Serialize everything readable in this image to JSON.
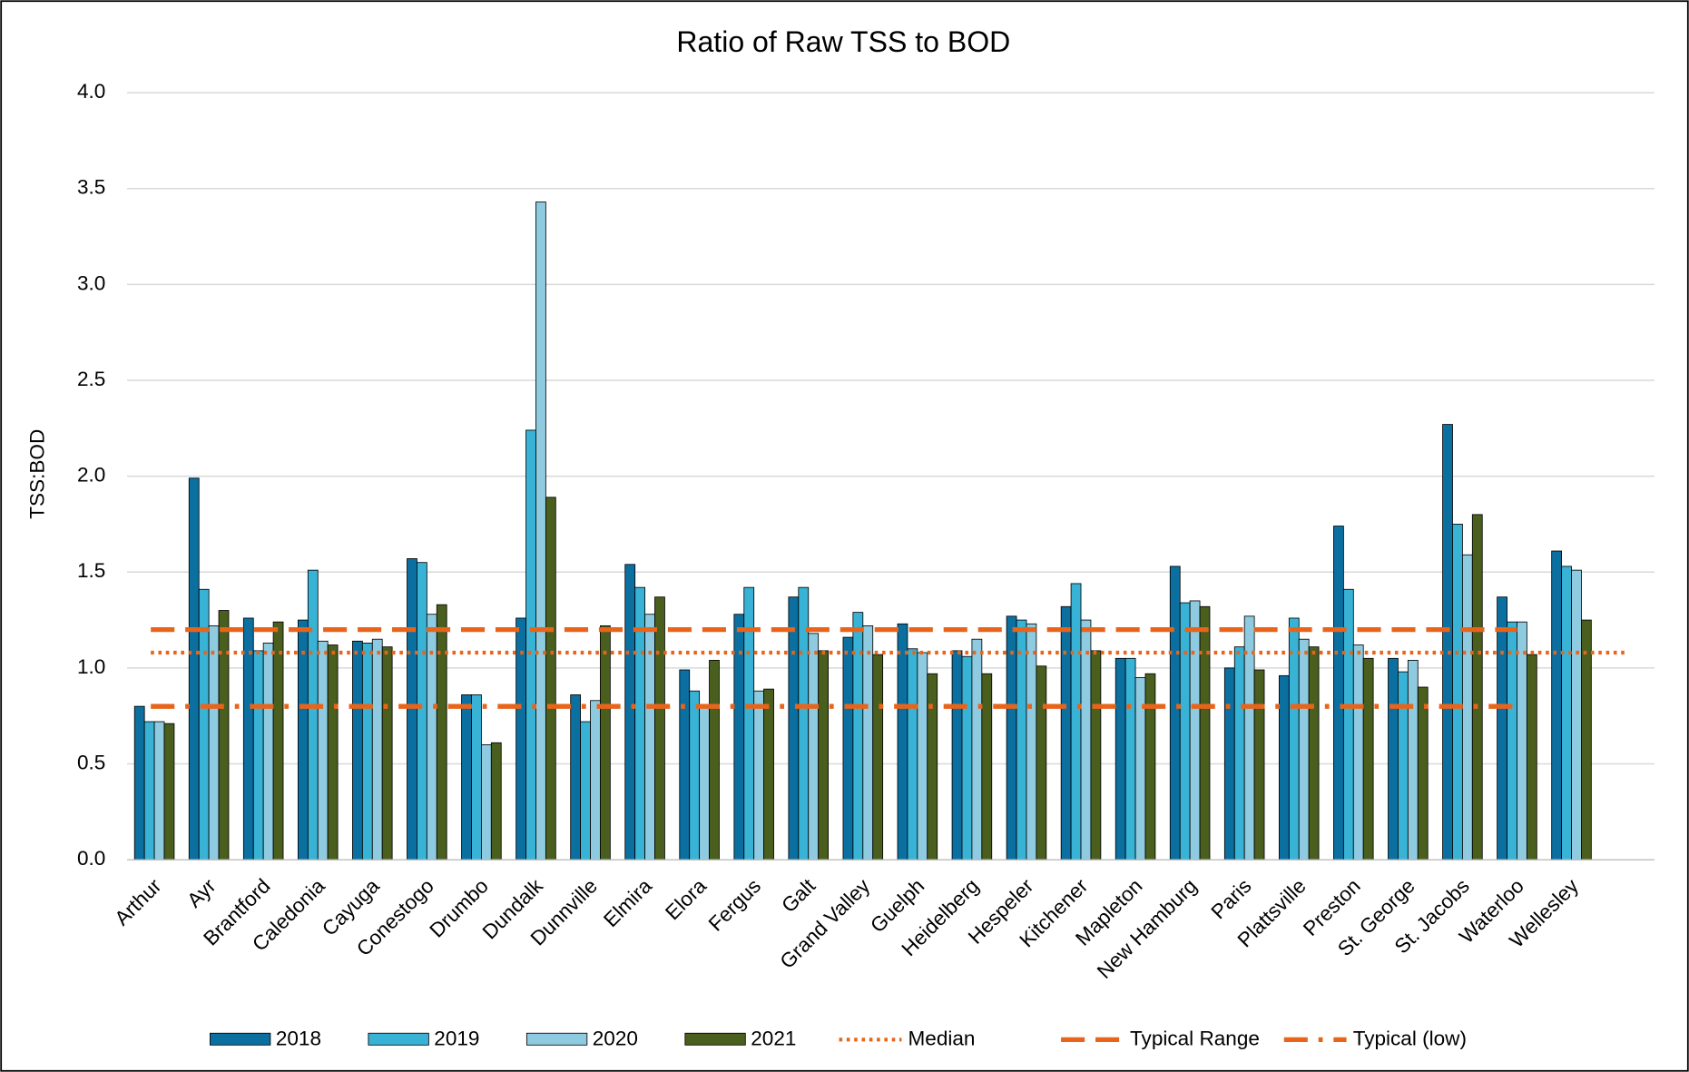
{
  "chart_data": {
    "type": "bar",
    "title": "Ratio of Raw TSS to BOD",
    "y_label": "TSS:BOD",
    "categories": [
      "Arthur",
      "Ayr",
      "Brantford",
      "Caledonia",
      "Cayuga",
      "Conestogo",
      "Drumbo",
      "Dundalk",
      "Dunnville",
      "Elmira",
      "Elora",
      "Fergus",
      "Galt",
      "Grand Valley",
      "Guelph",
      "Heidelberg",
      "Hespeler",
      "Kitchener",
      "Mapleton",
      "New Hamburg",
      "Paris",
      "Plattsville",
      "Preston",
      "St. George",
      "St. Jacobs",
      "Waterloo",
      "Wellesley"
    ],
    "series": [
      {
        "name": "2018",
        "color": "#0b6fa0",
        "values": [
          0.8,
          1.99,
          1.26,
          1.25,
          1.14,
          1.57,
          0.86,
          1.26,
          0.86,
          1.54,
          0.99,
          1.28,
          1.37,
          1.16,
          1.23,
          1.09,
          1.27,
          1.32,
          1.05,
          1.53,
          1.0,
          0.96,
          1.74,
          1.05,
          2.27,
          1.37,
          1.61
        ]
      },
      {
        "name": "2019",
        "color": "#38b3d6",
        "values": [
          0.72,
          1.41,
          1.09,
          1.51,
          1.13,
          1.55,
          0.86,
          2.24,
          0.72,
          1.42,
          0.88,
          1.42,
          1.42,
          1.29,
          1.1,
          1.06,
          1.25,
          1.44,
          1.05,
          1.34,
          1.11,
          1.26,
          1.41,
          0.98,
          1.75,
          1.24,
          1.53
        ]
      },
      {
        "name": "2020",
        "color": "#8fcbe0",
        "values": [
          0.72,
          1.22,
          1.13,
          1.14,
          1.15,
          1.28,
          0.6,
          3.43,
          0.83,
          1.28,
          0.8,
          0.88,
          1.18,
          1.22,
          1.08,
          1.15,
          1.23,
          1.25,
          0.95,
          1.35,
          1.27,
          1.15,
          1.12,
          1.04,
          1.59,
          1.24,
          1.51
        ]
      },
      {
        "name": "2021",
        "color": "#4a5e1e",
        "values": [
          0.71,
          1.3,
          1.24,
          1.12,
          1.11,
          1.33,
          0.61,
          1.89,
          1.22,
          1.37,
          1.04,
          0.89,
          1.09,
          1.07,
          0.97,
          0.97,
          1.01,
          1.09,
          0.97,
          1.32,
          0.99,
          1.11,
          1.05,
          0.9,
          1.8,
          1.07,
          1.25
        ]
      }
    ],
    "reference_lines": [
      {
        "name": "Median",
        "value": 1.08,
        "color": "#e8641b",
        "style": "dotted"
      },
      {
        "name": "Typical Range",
        "value": 1.2,
        "color": "#e8641b",
        "style": "dashed"
      },
      {
        "name": "Typical (low)",
        "value": 0.8,
        "color": "#e8641b",
        "style": "dashdot"
      }
    ],
    "ylim": [
      0,
      4
    ],
    "yticks": [
      {
        "value": 0,
        "label": "0.0"
      },
      {
        "value": 0.5,
        "label": "0.5"
      },
      {
        "value": 1,
        "label": "1.0"
      },
      {
        "value": 1.5,
        "label": "1.5"
      },
      {
        "value": 2,
        "label": "2.0"
      },
      {
        "value": 2.5,
        "label": "2.5"
      },
      {
        "value": 3,
        "label": "3.0"
      },
      {
        "value": 3.5,
        "label": "3.5"
      },
      {
        "value": 4,
        "label": "4.0"
      }
    ],
    "grid": true
  }
}
